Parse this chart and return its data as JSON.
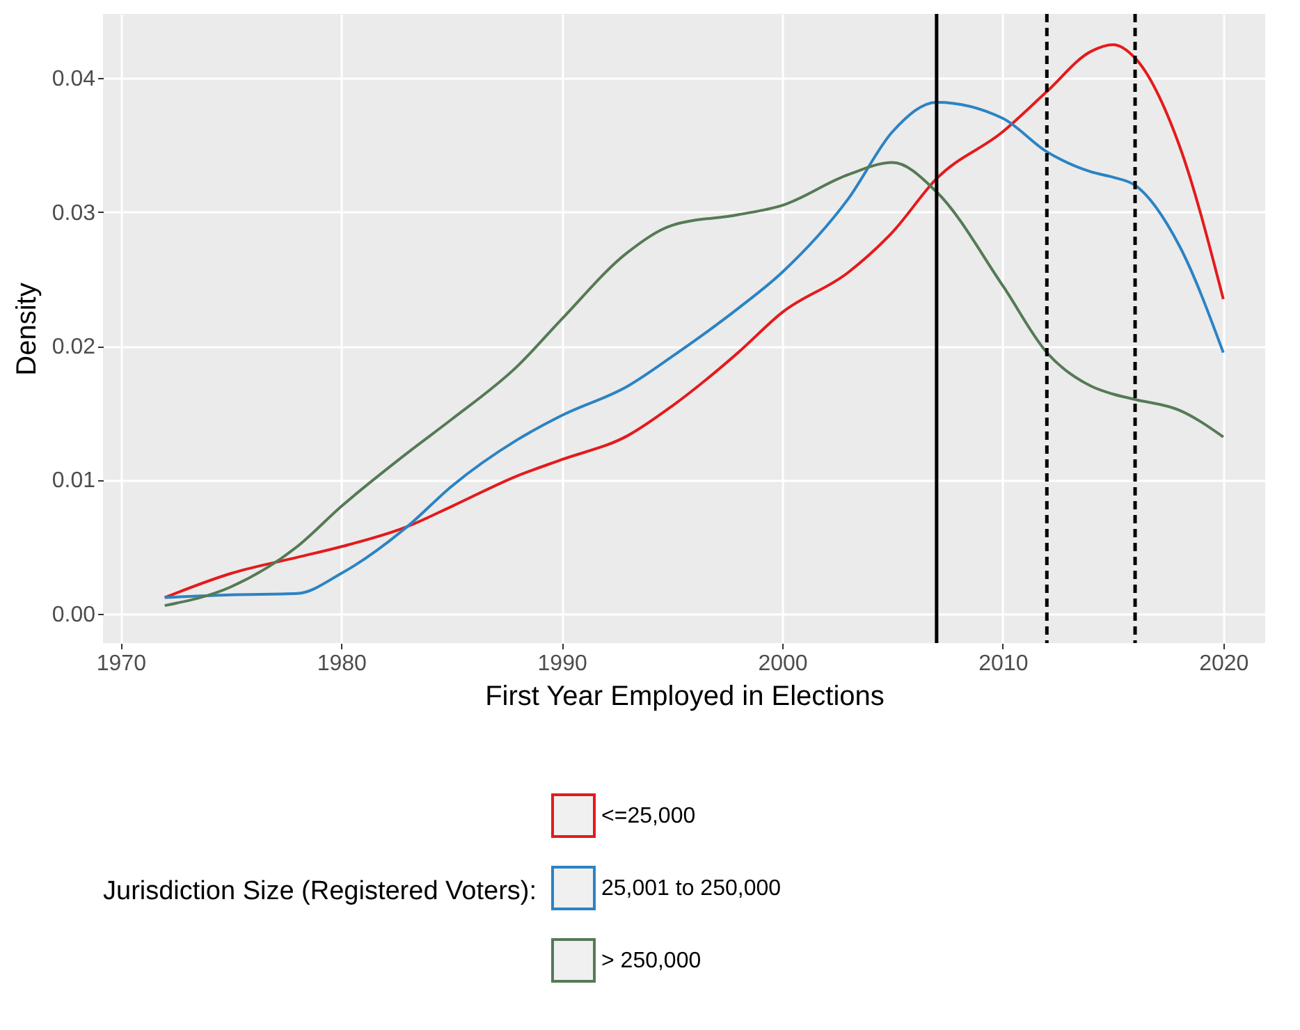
{
  "chart_data": {
    "type": "line",
    "xlabel": "First Year Employed in Elections",
    "ylabel": "Density",
    "legend_title": "Jurisdiction Size (Registered Voters):",
    "x": [
      1972,
      1975,
      1978,
      1980,
      1983,
      1985,
      1988,
      1990,
      1993,
      1995,
      1998,
      2000,
      2003,
      2005,
      2007,
      2010,
      2012,
      2014,
      2015,
      2016,
      2018,
      2020
    ],
    "series": [
      {
        "name": "<=25,000",
        "color": "#e41a1c",
        "values": [
          0.0012,
          0.003,
          0.0042,
          0.005,
          0.0065,
          0.008,
          0.0103,
          0.0115,
          0.0133,
          0.0155,
          0.0195,
          0.0225,
          0.0255,
          0.0285,
          0.0325,
          0.036,
          0.039,
          0.042,
          0.0425,
          0.0415,
          0.035,
          0.0235
        ]
      },
      {
        "name": "25,001 to 250,000",
        "color": "#2b83c4",
        "values": [
          0.0012,
          0.0014,
          0.0015,
          0.003,
          0.0065,
          0.0095,
          0.013,
          0.0148,
          0.017,
          0.0192,
          0.0228,
          0.0255,
          0.031,
          0.036,
          0.0382,
          0.037,
          0.0345,
          0.033,
          0.0326,
          0.032,
          0.0275,
          0.0195
        ]
      },
      {
        "name": "> 250,000",
        "color": "#557a55",
        "values": [
          0.0006,
          0.002,
          0.005,
          0.008,
          0.012,
          0.0145,
          0.0185,
          0.022,
          0.027,
          0.029,
          0.0298,
          0.0305,
          0.0328,
          0.0337,
          0.0315,
          0.0245,
          0.0195,
          0.017,
          0.0164,
          0.016,
          0.0152,
          0.0132
        ]
      }
    ],
    "xlim": [
      1969.2,
      2021.9
    ],
    "xticks": [
      1970,
      1980,
      1990,
      2000,
      2010,
      2020
    ],
    "ylim": [
      -0.0022,
      0.0448
    ],
    "yticks": [
      {
        "value": 0,
        "label": "0.00"
      },
      {
        "value": 0.01,
        "label": "0.01"
      },
      {
        "value": 0.02,
        "label": "0.02"
      },
      {
        "value": 0.03,
        "label": "0.03"
      },
      {
        "value": 0.04,
        "label": "0.04"
      }
    ],
    "ref_lines": [
      {
        "axis": "x",
        "value": 2007,
        "color": "#000000",
        "line_style": "solid"
      },
      {
        "axis": "x",
        "value": 2012,
        "color": "#000000",
        "line_style": "dashed"
      },
      {
        "axis": "x",
        "value": 2016,
        "color": "#000000",
        "line_style": "dashed"
      }
    ],
    "grid": true,
    "legend": "bottom"
  }
}
